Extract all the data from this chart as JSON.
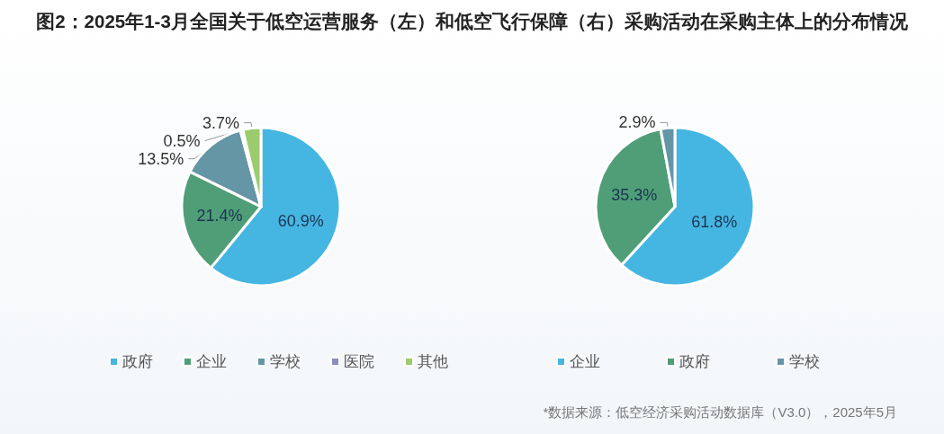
{
  "chart_data": [
    {
      "type": "pie",
      "title": "图2：2025年1-3月全国关于低空运营服务（左）和低空飞行保障（右）采购活动在采购主体上的分布情况",
      "categories": [
        "政府",
        "企业",
        "学校",
        "医院",
        "其他"
      ],
      "values": [
        60.9,
        21.4,
        13.5,
        0.5,
        3.7
      ],
      "value_labels": [
        "60.9%",
        "21.4%",
        "13.5%",
        "0.5%",
        "3.7%"
      ],
      "colors": [
        "#45b6e2",
        "#4f9e78",
        "#6596a6",
        "#8b8ebf",
        "#9bcb6c"
      ],
      "legend": "bottom"
    },
    {
      "type": "pie",
      "categories": [
        "企业",
        "政府",
        "学校"
      ],
      "values": [
        61.8,
        35.3,
        2.9
      ],
      "value_labels": [
        "61.8%",
        "35.3%",
        "2.9%"
      ],
      "colors": [
        "#45b6e2",
        "#4f9e78",
        "#6596a6"
      ],
      "legend": "bottom",
      "annotations": [
        "*数据来源：低空经济采购活动数据库（V3.0），2025年5月"
      ]
    }
  ]
}
